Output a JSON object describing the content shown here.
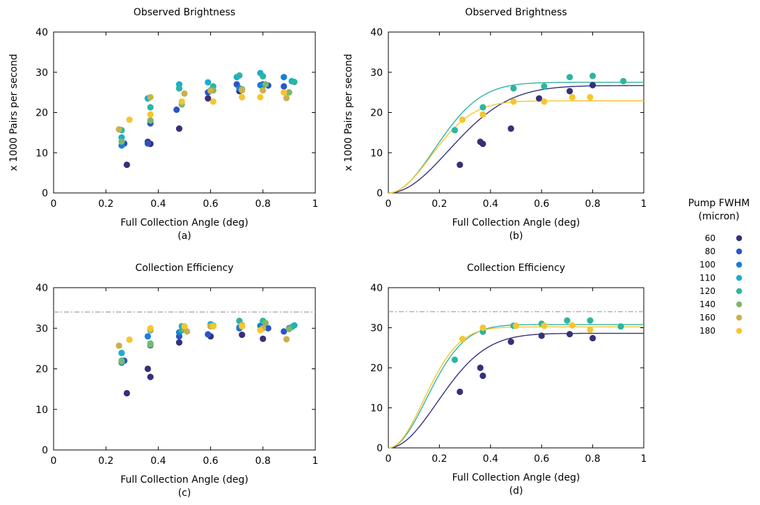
{
  "legend": {
    "title_line1": "Pump FWHM",
    "title_line2": "(micron)",
    "entries": [
      {
        "label": "60",
        "color": "#35307a"
      },
      {
        "label": "80",
        "color": "#2a54c8"
      },
      {
        "label": "100",
        "color": "#1a7fd6"
      },
      {
        "label": "110",
        "color": "#1aaecf"
      },
      {
        "label": "120",
        "color": "#2db5a0"
      },
      {
        "label": "140",
        "color": "#7db86a"
      },
      {
        "label": "160",
        "color": "#c9b24c"
      },
      {
        "label": "180",
        "color": "#f6c530"
      }
    ]
  },
  "chart_data": [
    {
      "id": "a",
      "type": "scatter",
      "title": "Observed Brightness",
      "xlabel": "Full Collection Angle (deg)",
      "ylabel": "x 1000 Pairs per second",
      "caption": "(a)",
      "xlim": [
        0,
        1
      ],
      "ylim": [
        0,
        40
      ],
      "xticks": [
        0,
        0.2,
        0.4,
        0.6,
        0.8,
        1
      ],
      "xtick_labels": [
        "0",
        "0.2",
        "0.4",
        "0.6",
        "0.8",
        "1"
      ],
      "yticks": [
        0,
        10,
        20,
        30,
        40
      ],
      "ytick_labels": [
        "0",
        "10",
        "20",
        "30",
        "40"
      ],
      "reference_line": null,
      "series": [
        {
          "legend_index": 0,
          "x": [
            0.28,
            0.36,
            0.37,
            0.48,
            0.59,
            0.71,
            0.8
          ],
          "y": [
            7.0,
            12.7,
            12.2,
            16.0,
            23.5,
            25.3,
            26.8
          ]
        },
        {
          "legend_index": 1,
          "x": [
            0.27,
            0.36,
            0.37,
            0.47,
            0.59,
            0.7,
            0.8,
            0.82,
            0.88
          ],
          "y": [
            12.3,
            12.3,
            17.3,
            20.7,
            25.0,
            27.0,
            27.0,
            26.7,
            26.5
          ]
        },
        {
          "legend_index": 2,
          "x": [
            0.26,
            0.36,
            0.37,
            0.48,
            0.6,
            0.71,
            0.79,
            0.88
          ],
          "y": [
            11.8,
            23.5,
            18.0,
            26.0,
            25.5,
            26.0,
            26.8,
            28.8
          ]
        },
        {
          "legend_index": 3,
          "x": [
            0.26,
            0.36,
            0.48,
            0.59,
            0.7,
            0.79,
            0.91
          ],
          "y": [
            13.8,
            23.5,
            27.0,
            27.5,
            28.8,
            29.8,
            27.8
          ]
        },
        {
          "legend_index": 4,
          "x": [
            0.26,
            0.37,
            0.48,
            0.61,
            0.71,
            0.8,
            0.92
          ],
          "y": [
            15.6,
            21.3,
            26.0,
            26.5,
            29.2,
            29.0,
            27.6
          ]
        },
        {
          "legend_index": 5,
          "x": [
            0.26,
            0.37,
            0.49,
            0.61,
            0.72,
            0.81,
            0.9
          ],
          "y": [
            12.8,
            18.0,
            22.0,
            25.5,
            25.8,
            27.0,
            25.0
          ]
        },
        {
          "legend_index": 6,
          "x": [
            0.25,
            0.37,
            0.5,
            0.6,
            0.72,
            0.8,
            0.89
          ],
          "y": [
            15.8,
            23.8,
            24.7,
            25.4,
            25.5,
            25.5,
            23.6
          ]
        },
        {
          "legend_index": 7,
          "x": [
            0.29,
            0.37,
            0.49,
            0.61,
            0.72,
            0.79,
            0.88
          ],
          "y": [
            18.2,
            19.5,
            22.7,
            22.7,
            23.8,
            23.8,
            25.0
          ]
        }
      ],
      "fits": []
    },
    {
      "id": "b",
      "type": "scatter",
      "title": "Observed Brightness",
      "xlabel": "Full Collection Angle (deg)",
      "ylabel": "x 1000 Pairs per second",
      "caption": "(b)",
      "xlim": [
        0,
        1
      ],
      "ylim": [
        0,
        40
      ],
      "xticks": [
        0,
        0.2,
        0.4,
        0.6,
        0.8,
        1
      ],
      "xtick_labels": [
        "0",
        "0.2",
        "0.4",
        "0.6",
        "0.8",
        "1"
      ],
      "yticks": [
        0,
        10,
        20,
        30,
        40
      ],
      "ytick_labels": [
        "0",
        "10",
        "20",
        "30",
        "40"
      ],
      "reference_line": null,
      "series": [
        {
          "legend_index": 0,
          "x": [
            0.28,
            0.36,
            0.37,
            0.48,
            0.59,
            0.71,
            0.8
          ],
          "y": [
            7.0,
            12.7,
            12.2,
            16.0,
            23.5,
            25.3,
            26.8
          ]
        },
        {
          "legend_index": 4,
          "x": [
            0.26,
            0.37,
            0.49,
            0.61,
            0.71,
            0.8,
            0.92
          ],
          "y": [
            15.6,
            21.3,
            26.0,
            26.5,
            28.8,
            29.1,
            27.8
          ]
        },
        {
          "legend_index": 7,
          "x": [
            0.29,
            0.37,
            0.49,
            0.61,
            0.72,
            0.79
          ],
          "y": [
            18.2,
            19.5,
            22.7,
            22.7,
            23.8,
            23.8
          ]
        }
      ],
      "fits": [
        {
          "legend_index": 0,
          "a": 26.7,
          "sigma": 0.235
        },
        {
          "legend_index": 4,
          "a": 27.5,
          "sigma": 0.18
        },
        {
          "legend_index": 7,
          "a": 22.9,
          "sigma": 0.165
        }
      ]
    },
    {
      "id": "c",
      "type": "scatter",
      "title": "Collection Efficiency",
      "xlabel": "Full Collection Angle (deg)",
      "ylabel": "",
      "caption": "(c)",
      "xlim": [
        0,
        1
      ],
      "ylim": [
        0,
        40
      ],
      "xticks": [
        0,
        0.2,
        0.4,
        0.6,
        0.8,
        1
      ],
      "xtick_labels": [
        "0",
        "0.2",
        "0.4",
        "0.6",
        "0.8",
        "1"
      ],
      "yticks": [
        0,
        10,
        20,
        30,
        40
      ],
      "ytick_labels": [
        "0",
        "10",
        "20",
        "30",
        "40"
      ],
      "reference_line": 34,
      "series": [
        {
          "legend_index": 0,
          "x": [
            0.28,
            0.36,
            0.37,
            0.48,
            0.6,
            0.72,
            0.8
          ],
          "y": [
            14.0,
            20.0,
            18.0,
            26.5,
            28.0,
            28.4,
            27.4
          ]
        },
        {
          "legend_index": 1,
          "x": [
            0.27,
            0.37,
            0.48,
            0.59,
            0.71,
            0.82,
            0.88
          ],
          "y": [
            22.0,
            25.8,
            28.0,
            28.5,
            30.0,
            30.0,
            29.2
          ]
        },
        {
          "legend_index": 2,
          "x": [
            0.26,
            0.36,
            0.48,
            0.6,
            0.71,
            0.79,
            0.9
          ],
          "y": [
            21.5,
            28.0,
            29.0,
            30.5,
            30.2,
            30.6,
            30.0
          ]
        },
        {
          "legend_index": 3,
          "x": [
            0.26,
            0.37,
            0.49,
            0.6,
            0.71,
            0.8,
            0.92
          ],
          "y": [
            23.9,
            29.5,
            30.5,
            31.0,
            31.8,
            31.8,
            30.7
          ]
        },
        {
          "legend_index": 4,
          "x": [
            0.26,
            0.37,
            0.49,
            0.61,
            0.71,
            0.8,
            0.91
          ],
          "y": [
            22.0,
            26.2,
            29.5,
            30.5,
            31.8,
            31.8,
            30.3
          ]
        },
        {
          "legend_index": 5,
          "x": [
            0.26,
            0.37,
            0.5,
            0.61,
            0.72,
            0.81,
            0.9
          ],
          "y": [
            21.8,
            26.0,
            29.8,
            30.7,
            30.5,
            31.3,
            29.8
          ]
        },
        {
          "legend_index": 6,
          "x": [
            0.25,
            0.37,
            0.51,
            0.6,
            0.72,
            0.8,
            0.89
          ],
          "y": [
            25.7,
            29.7,
            29.2,
            30.5,
            30.8,
            30.0,
            27.3
          ]
        },
        {
          "legend_index": 7,
          "x": [
            0.29,
            0.37,
            0.5,
            0.61,
            0.72,
            0.79
          ],
          "y": [
            27.2,
            30.0,
            30.5,
            30.5,
            30.5,
            29.5
          ]
        }
      ],
      "fits": []
    },
    {
      "id": "d",
      "type": "scatter",
      "title": "Collection Efficiency",
      "xlabel": "Full Collection Angle (deg)",
      "ylabel": "",
      "caption": "(d)",
      "xlim": [
        0,
        1
      ],
      "ylim": [
        0,
        40
      ],
      "xticks": [
        0,
        0.2,
        0.4,
        0.6,
        0.8,
        1
      ],
      "xtick_labels": [
        "0",
        "0.2",
        "0.4",
        "0.6",
        "0.8",
        "1"
      ],
      "yticks": [
        0,
        10,
        20,
        30,
        40
      ],
      "ytick_labels": [
        "0",
        "10",
        "20",
        "30",
        "40"
      ],
      "reference_line": 34,
      "series": [
        {
          "legend_index": 0,
          "x": [
            0.28,
            0.36,
            0.37,
            0.48,
            0.6,
            0.71,
            0.8
          ],
          "y": [
            14.0,
            20.0,
            18.0,
            26.5,
            28.0,
            28.4,
            27.4
          ]
        },
        {
          "legend_index": 4,
          "x": [
            0.26,
            0.37,
            0.49,
            0.6,
            0.7,
            0.79,
            0.91
          ],
          "y": [
            22.0,
            29.0,
            30.5,
            31.0,
            31.8,
            31.8,
            30.3
          ]
        },
        {
          "legend_index": 7,
          "x": [
            0.29,
            0.37,
            0.5,
            0.61,
            0.72,
            0.79
          ],
          "y": [
            27.2,
            30.0,
            30.5,
            30.5,
            30.6,
            29.5
          ]
        }
      ],
      "fits": [
        {
          "legend_index": 0,
          "a": 28.6,
          "sigma": 0.19
        },
        {
          "legend_index": 4,
          "a": 30.8,
          "sigma": 0.148
        },
        {
          "legend_index": 7,
          "a": 30.2,
          "sigma": 0.138
        }
      ]
    }
  ]
}
